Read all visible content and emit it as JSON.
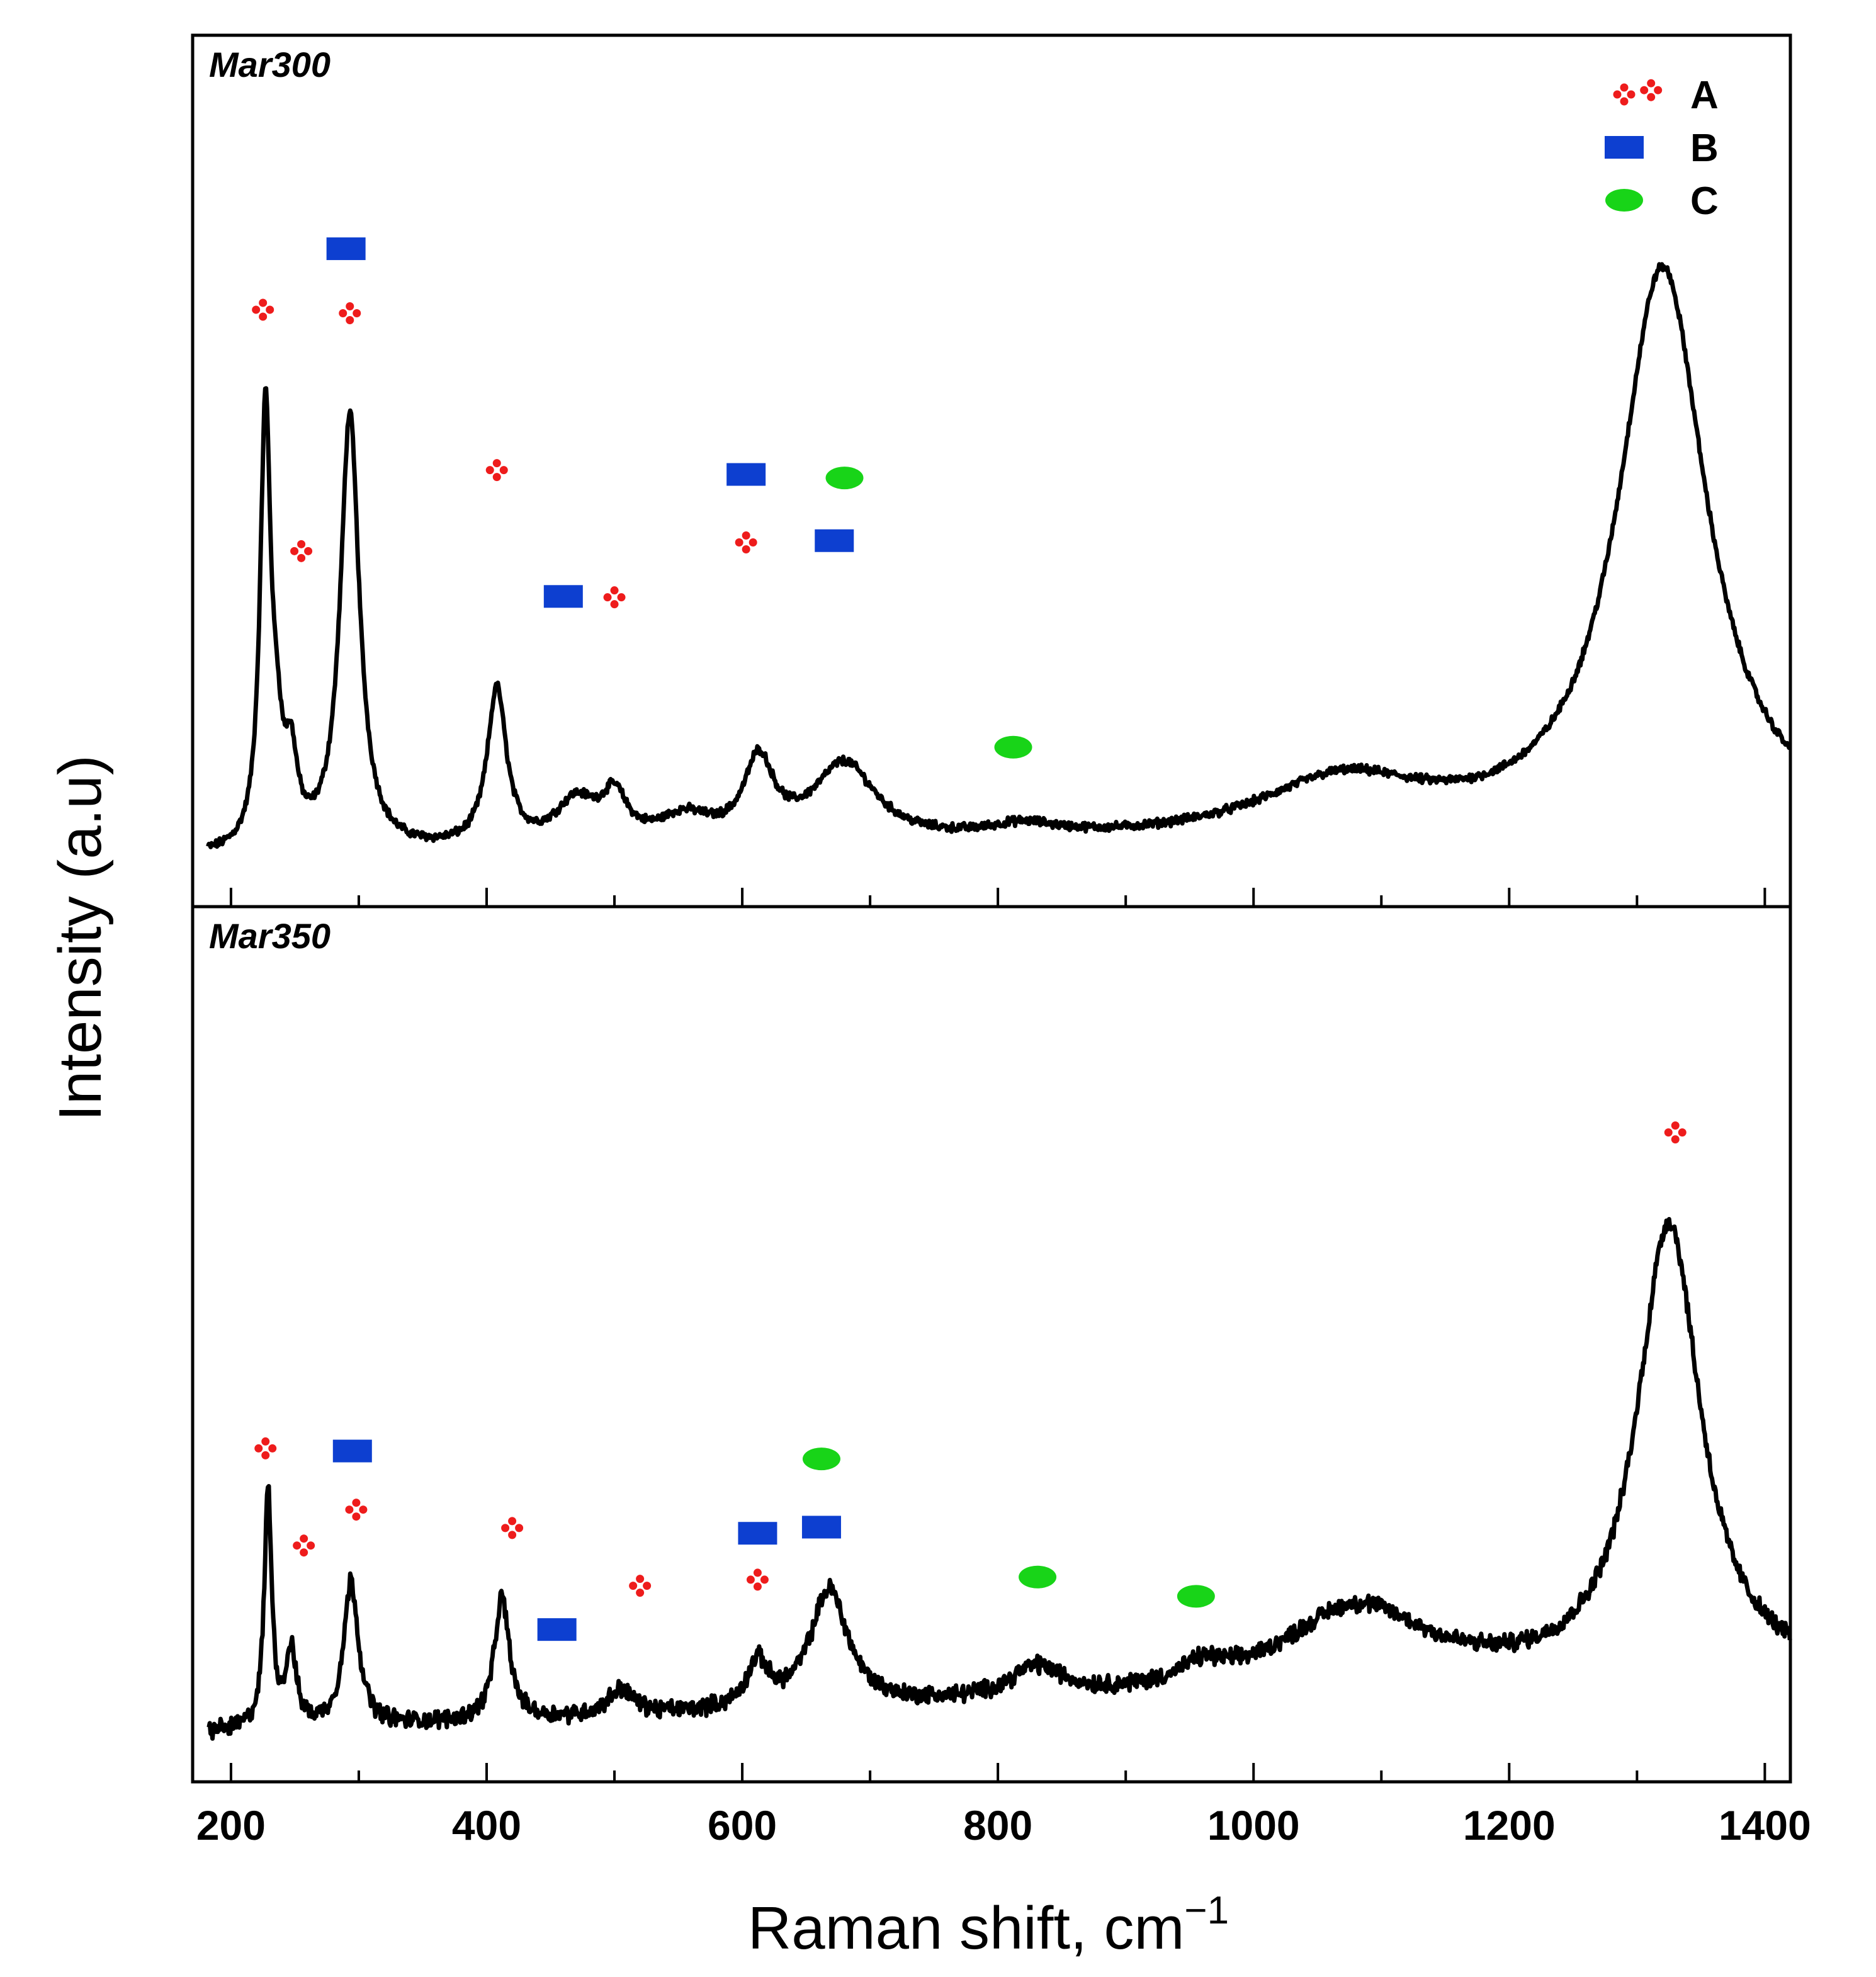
{
  "chart_data": {
    "type": "line",
    "xlabel": "Raman shift, cm",
    "xlabel_superscript": "−1",
    "ylabel": "Intensity (a.u)",
    "xlim": [
      170,
      1420
    ],
    "x_ticks": [
      200,
      400,
      600,
      800,
      1000,
      1200,
      1400
    ],
    "x_tick_labels": [
      "200",
      "400",
      "600",
      "800",
      "1000",
      "1200",
      "1400"
    ],
    "y_ticks_shown": false,
    "legend": {
      "placement": "top-right",
      "entries": [
        {
          "symbol": "A",
          "label": "A",
          "shape": "four-dots",
          "color": "#ee1c1c"
        },
        {
          "symbol": "B",
          "label": "B",
          "shape": "rectangle",
          "color": "#0d3fd0"
        },
        {
          "symbol": "C",
          "label": "C",
          "shape": "ellipse",
          "color": "#18d418"
        }
      ]
    },
    "panels": [
      {
        "name": "Mar300",
        "ylim": [
          0,
          1.0
        ],
        "baseline": 0.055,
        "peaks": [
          {
            "x": 227,
            "height": 0.5,
            "width": 5
          },
          {
            "x": 236,
            "height": 0.08,
            "width": 5
          },
          {
            "x": 247,
            "height": 0.09,
            "width": 6
          },
          {
            "x": 293,
            "height": 0.5,
            "width": 9
          },
          {
            "x": 408,
            "height": 0.18,
            "width": 9
          },
          {
            "x": 470,
            "height": 0.05,
            "width": 20
          },
          {
            "x": 500,
            "height": 0.05,
            "width": 12
          },
          {
            "x": 555,
            "height": 0.03,
            "width": 25
          },
          {
            "x": 613,
            "height": 0.09,
            "width": 14
          },
          {
            "x": 680,
            "height": 0.09,
            "width": 30
          },
          {
            "x": 820,
            "height": 0.015,
            "width": 35
          },
          {
            "x": 1070,
            "height": 0.065,
            "width": 80
          },
          {
            "x": 1320,
            "height": 0.65,
            "width": 42
          }
        ],
        "slope": 2e-05,
        "noise": 0.004,
        "markers": [
          {
            "type": "A",
            "x": 225,
            "y": 0.685
          },
          {
            "type": "B",
            "x": 290,
            "y": 0.755
          },
          {
            "type": "A",
            "x": 293,
            "y": 0.681
          },
          {
            "type": "A",
            "x": 255,
            "y": 0.408
          },
          {
            "type": "A",
            "x": 408,
            "y": 0.501
          },
          {
            "type": "B",
            "x": 460,
            "y": 0.356
          },
          {
            "type": "A",
            "x": 500,
            "y": 0.355
          },
          {
            "type": "B",
            "x": 603,
            "y": 0.496
          },
          {
            "type": "A",
            "x": 603,
            "y": 0.418
          },
          {
            "type": "C",
            "x": 680,
            "y": 0.492
          },
          {
            "type": "B",
            "x": 672,
            "y": 0.42
          },
          {
            "type": "C",
            "x": 812,
            "y": 0.183
          },
          {
            "type": "A",
            "x": 1311,
            "y": 0.937
          }
        ]
      },
      {
        "name": "Mar350",
        "ylim": [
          0,
          1.0
        ],
        "baseline": 0.055,
        "peaks": [
          {
            "x": 229,
            "height": 0.27,
            "width": 3.5
          },
          {
            "x": 247,
            "height": 0.085,
            "width": 5
          },
          {
            "x": 294,
            "height": 0.165,
            "width": 7
          },
          {
            "x": 412,
            "height": 0.14,
            "width": 7
          },
          {
            "x": 505,
            "height": 0.03,
            "width": 12
          },
          {
            "x": 612,
            "height": 0.05,
            "width": 10
          },
          {
            "x": 668,
            "height": 0.135,
            "width": 18
          },
          {
            "x": 830,
            "height": 0.035,
            "width": 25
          },
          {
            "x": 960,
            "height": 0.02,
            "width": 20
          },
          {
            "x": 1080,
            "height": 0.095,
            "width": 70
          },
          {
            "x": 1325,
            "height": 0.52,
            "width": 30
          }
        ],
        "slope": 5e-05,
        "noise": 0.008,
        "markers": [
          {
            "type": "A",
            "x": 227,
            "y": 0.381
          },
          {
            "type": "B",
            "x": 295,
            "y": 0.378
          },
          {
            "type": "A",
            "x": 298,
            "y": 0.311
          },
          {
            "type": "A",
            "x": 257,
            "y": 0.27
          },
          {
            "type": "A",
            "x": 420,
            "y": 0.29
          },
          {
            "type": "B",
            "x": 455,
            "y": 0.174
          },
          {
            "type": "A",
            "x": 520,
            "y": 0.224
          },
          {
            "type": "B",
            "x": 612,
            "y": 0.284
          },
          {
            "type": "A",
            "x": 612,
            "y": 0.231
          },
          {
            "type": "C",
            "x": 662,
            "y": 0.369
          },
          {
            "type": "B",
            "x": 662,
            "y": 0.291
          },
          {
            "type": "C",
            "x": 831,
            "y": 0.234
          },
          {
            "type": "C",
            "x": 955,
            "y": 0.212
          },
          {
            "type": "A",
            "x": 1330,
            "y": 0.742
          }
        ]
      }
    ]
  }
}
